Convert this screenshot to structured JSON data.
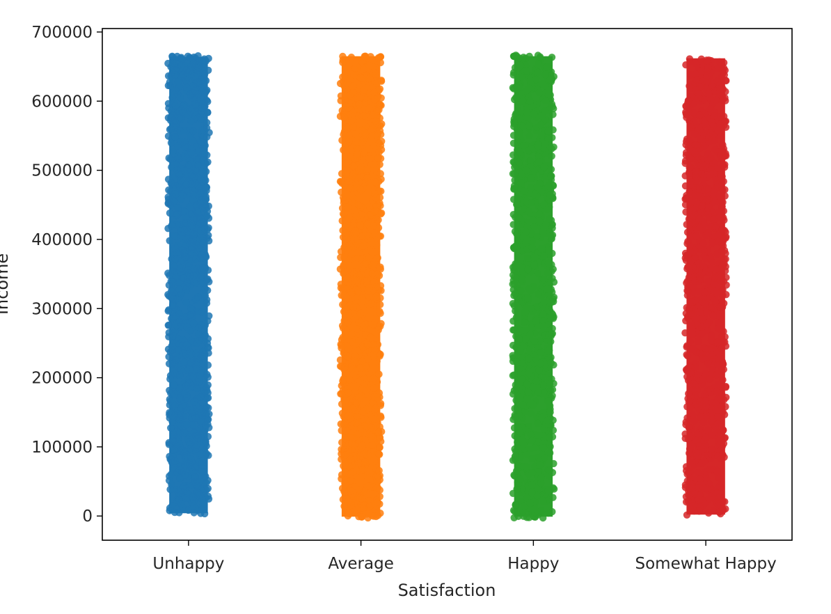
{
  "chart_data": {
    "type": "scatter",
    "subtype": "strip",
    "title": "",
    "xlabel": "Satisfaction",
    "ylabel": "Income",
    "categories": [
      "Unhappy",
      "Average",
      "Happy",
      "Somewhat Happy"
    ],
    "ylim": [
      -35000,
      705000
    ],
    "yticks": [
      0,
      100000,
      200000,
      300000,
      400000,
      500000,
      600000,
      700000
    ],
    "yticklabels": [
      "0",
      "100000",
      "200000",
      "300000",
      "400000",
      "500000",
      "600000",
      "700000"
    ],
    "grid": false,
    "legend": "none",
    "series": [
      {
        "category": "Unhappy",
        "color": "#1f77b4",
        "y_min": 2000,
        "y_max": 666000,
        "jitter": 0.12
      },
      {
        "category": "Average",
        "color": "#ff7f0e",
        "y_min": -3000,
        "y_max": 667000,
        "jitter": 0.12
      },
      {
        "category": "Happy",
        "color": "#2ca02c",
        "y_min": -3000,
        "y_max": 667000,
        "jitter": 0.12
      },
      {
        "category": "Somewhat Happy",
        "color": "#d62728",
        "y_min": 0,
        "y_max": 664000,
        "jitter": 0.12
      }
    ]
  }
}
